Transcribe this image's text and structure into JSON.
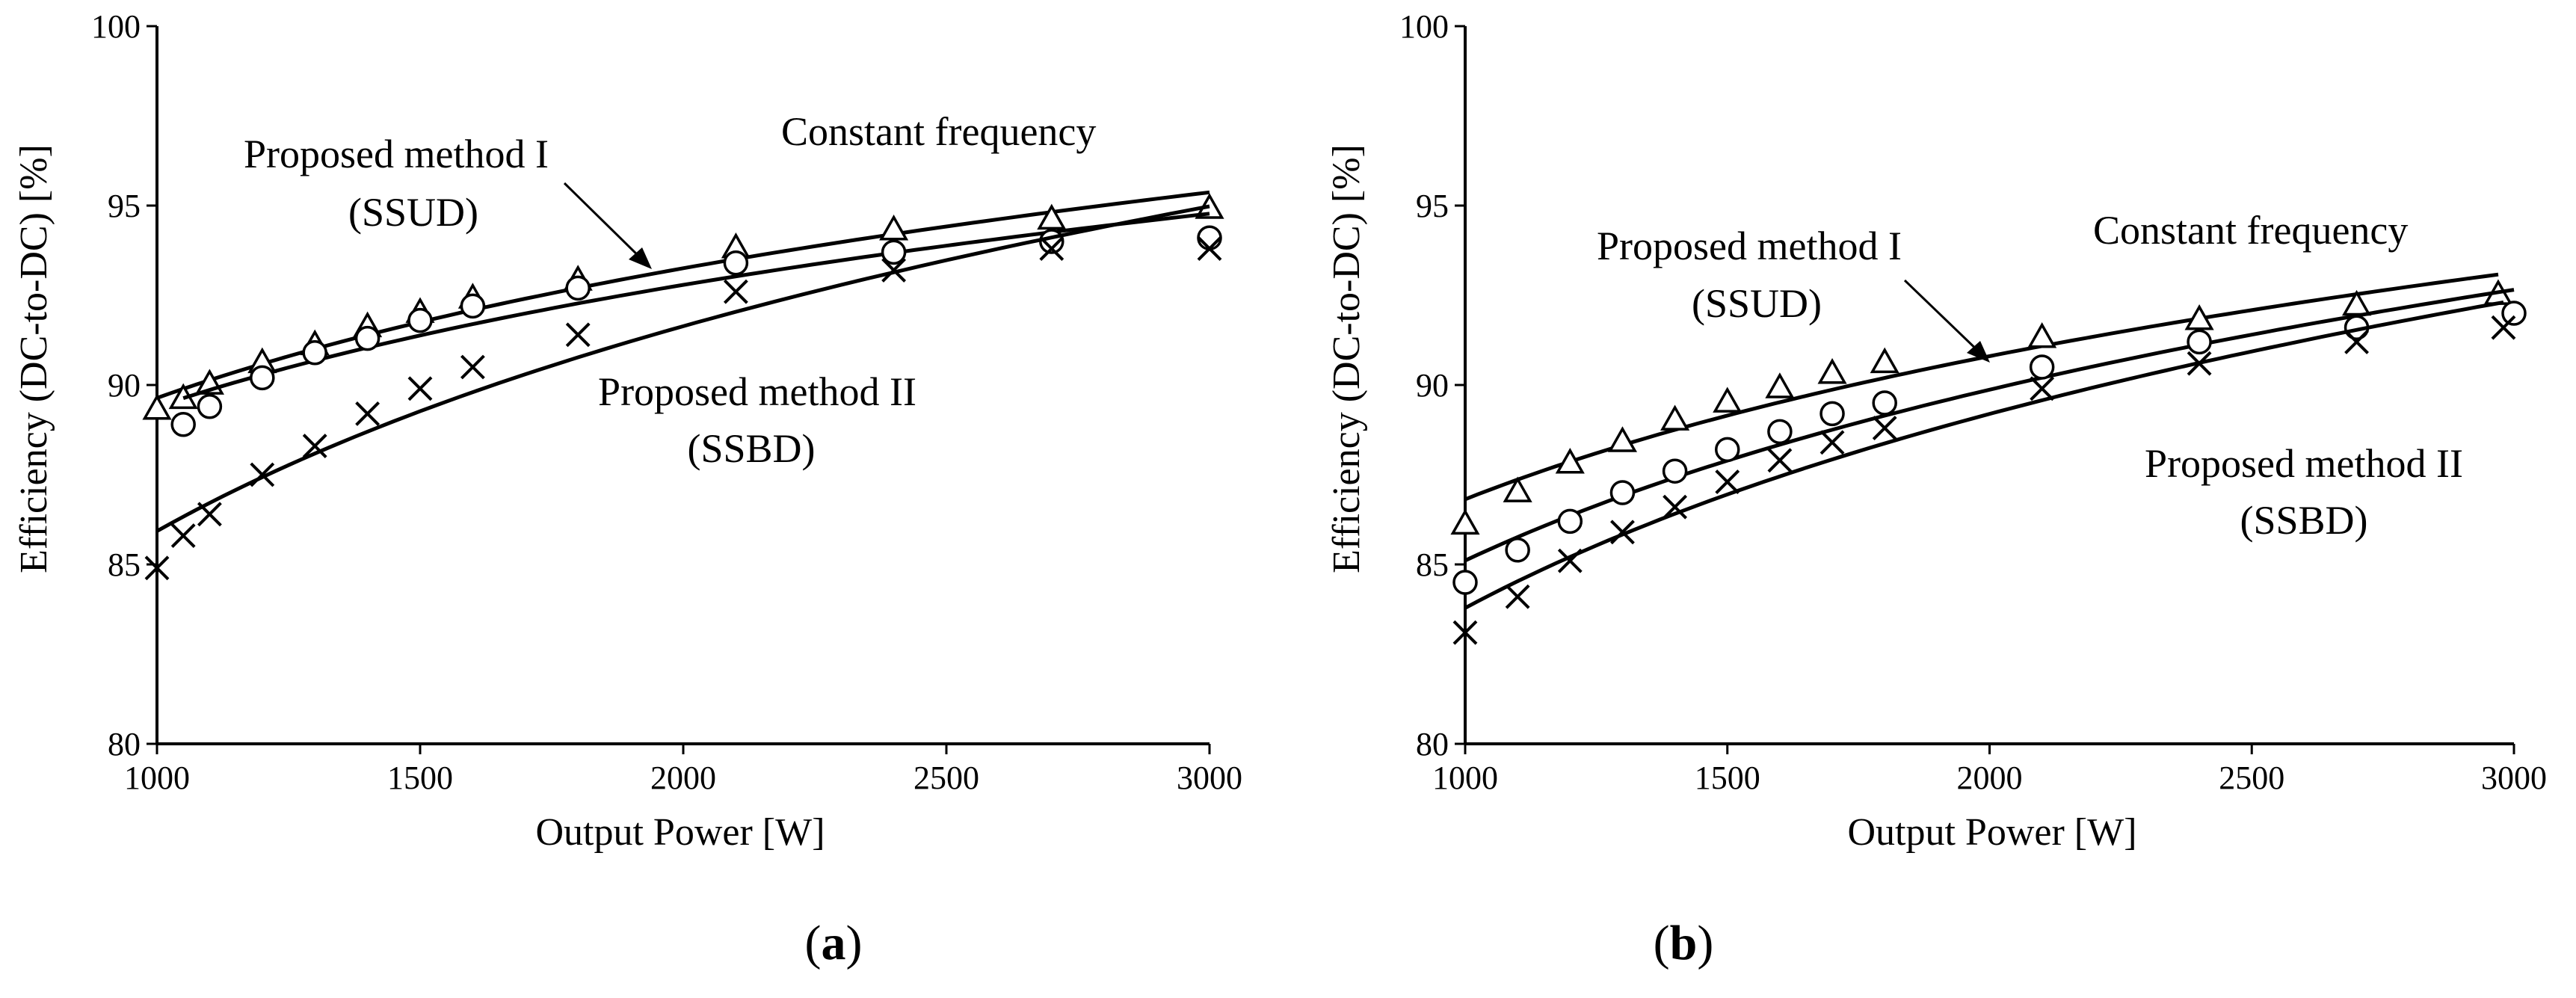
{
  "chart_data": [
    {
      "panel": "a",
      "type": "line",
      "title": "",
      "xlabel": "Output Power [W]",
      "ylabel": "Efficiency (DC-to-DC) [%]",
      "xlim": [
        1000,
        3000
      ],
      "ylim": [
        80,
        100
      ],
      "xticks": [
        1000,
        1500,
        2000,
        2500,
        3000
      ],
      "yticks": [
        80,
        85,
        90,
        95,
        100
      ],
      "grid": false,
      "series": [
        {
          "name": "Constant frequency",
          "marker": "triangle",
          "x": [
            1000,
            1050,
            1100,
            1200,
            1300,
            1400,
            1500,
            1600,
            1800,
            2100,
            2400,
            2700,
            3000
          ],
          "values": [
            89.3,
            89.6,
            90.0,
            90.6,
            91.1,
            91.6,
            92.0,
            92.4,
            92.9,
            93.8,
            94.3,
            94.6,
            94.9
          ]
        },
        {
          "name": "Proposed method I (SSUD)",
          "marker": "circle",
          "x": [
            1050,
            1100,
            1200,
            1300,
            1400,
            1500,
            1600,
            1800,
            2100,
            2400,
            2700,
            3000
          ],
          "values": [
            88.9,
            89.4,
            90.2,
            90.9,
            91.3,
            91.8,
            92.2,
            92.7,
            93.4,
            93.7,
            94.0,
            94.1
          ]
        },
        {
          "name": "Proposed method II (SSBD)",
          "marker": "cross",
          "x": [
            1000,
            1050,
            1100,
            1200,
            1300,
            1400,
            1500,
            1600,
            1800,
            2100,
            2400,
            2700,
            3000
          ],
          "values": [
            84.9,
            85.8,
            86.4,
            87.5,
            88.3,
            89.2,
            89.9,
            90.5,
            91.4,
            92.6,
            93.2,
            93.8,
            93.8
          ]
        }
      ],
      "annotations": {
        "constant_frequency": "Constant frequency",
        "method1_line1": "Proposed method I",
        "method1_line2": "(SSUD)",
        "method2_line1": "Proposed method II",
        "method2_line2": "(SSBD)"
      },
      "label": "a"
    },
    {
      "panel": "b",
      "type": "line",
      "title": "",
      "xlabel": "Output Power [W]",
      "ylabel": "Efficiency (DC-to-DC) [%]",
      "xlim": [
        1000,
        3000
      ],
      "ylim": [
        80,
        100
      ],
      "xticks": [
        1000,
        1500,
        2000,
        2500,
        3000
      ],
      "yticks": [
        80,
        85,
        90,
        95,
        100
      ],
      "grid": false,
      "series": [
        {
          "name": "Constant frequency",
          "marker": "triangle",
          "x": [
            1000,
            1100,
            1200,
            1300,
            1400,
            1500,
            1600,
            1700,
            1800,
            2100,
            2400,
            2700,
            2970
          ],
          "values": [
            86.1,
            87.0,
            87.8,
            88.4,
            89.0,
            89.5,
            89.9,
            90.3,
            90.6,
            91.3,
            91.8,
            92.2,
            92.5
          ]
        },
        {
          "name": "Proposed method I (SSUD)",
          "marker": "circle",
          "x": [
            1000,
            1100,
            1200,
            1300,
            1400,
            1500,
            1600,
            1700,
            1800,
            2100,
            2400,
            2700,
            3000
          ],
          "values": [
            84.5,
            85.4,
            86.2,
            87.0,
            87.6,
            88.2,
            88.7,
            89.2,
            89.5,
            90.5,
            91.2,
            91.6,
            92.0
          ]
        },
        {
          "name": "Proposed method II (SSBD)",
          "marker": "cross",
          "x": [
            1000,
            1100,
            1200,
            1300,
            1400,
            1500,
            1600,
            1700,
            1800,
            2100,
            2400,
            2700,
            2980
          ],
          "values": [
            83.1,
            84.1,
            85.1,
            85.9,
            86.6,
            87.3,
            87.9,
            88.4,
            88.8,
            89.9,
            90.6,
            91.2,
            91.6
          ]
        }
      ],
      "annotations": {
        "constant_frequency": "Constant frequency",
        "method1_line1": "Proposed method I",
        "method1_line2": "(SSUD)",
        "method2_line1": "Proposed method II",
        "method2_line2": "(SSBD)"
      },
      "label": "b"
    }
  ]
}
